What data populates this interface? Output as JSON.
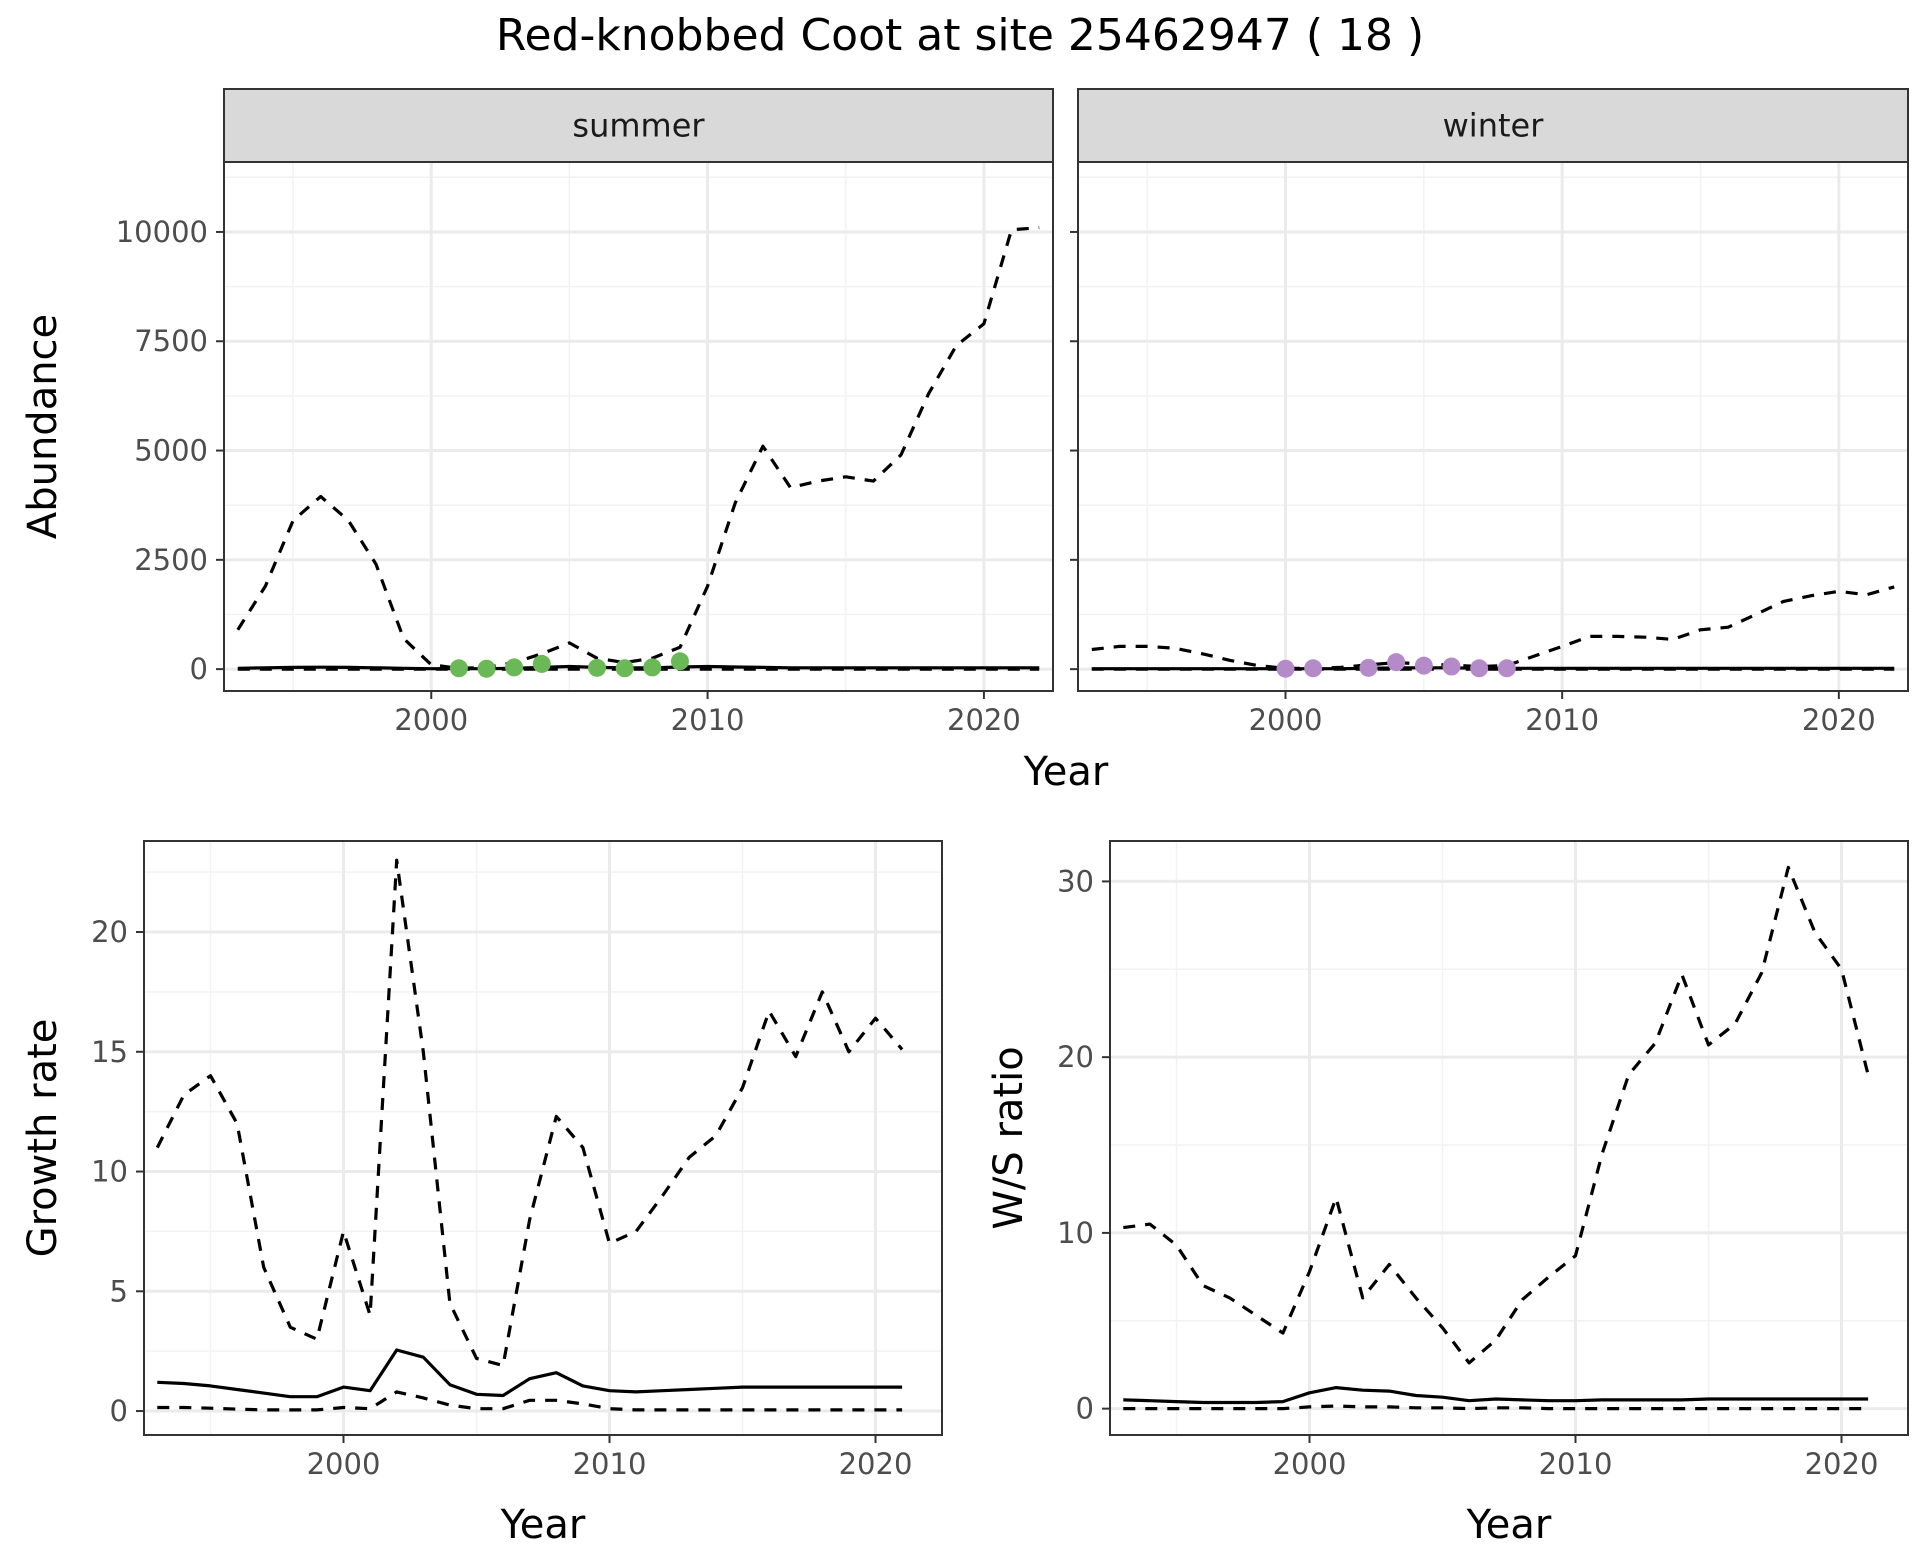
{
  "title": "Red-knobbed Coot at site 25462947 ( 18 )",
  "chart_data": [
    {
      "type": "line",
      "panel": "abundance",
      "facets": [
        "summer",
        "winter"
      ],
      "xlabel": "Year",
      "ylabel": "Abundance",
      "xlim": [
        1992.5,
        2022.5
      ],
      "ylim": [
        -500,
        11600
      ],
      "xticks": [
        2000,
        2010,
        2020
      ],
      "yticks": [
        0,
        2500,
        5000,
        7500,
        10000
      ],
      "grid": true,
      "facet_data": {
        "summer": {
          "solid": {
            "x": [
              1993,
              1994,
              1995,
              1996,
              1997,
              1998,
              1999,
              2000,
              2001,
              2002,
              2003,
              2004,
              2005,
              2006,
              2007,
              2008,
              2009,
              2010,
              2011,
              2012,
              2013,
              2014,
              2015,
              2016,
              2017,
              2018,
              2019,
              2020,
              2021,
              2022
            ],
            "y": [
              20,
              30,
              40,
              45,
              40,
              30,
              20,
              10,
              10,
              10,
              20,
              40,
              60,
              40,
              30,
              30,
              50,
              60,
              50,
              40,
              30,
              30,
              30,
              30,
              30,
              30,
              30,
              30,
              30,
              30
            ]
          },
          "dashed_upper": {
            "x": [
              1993,
              1994,
              1995,
              1996,
              1997,
              1998,
              1999,
              2000,
              2001,
              2002,
              2003,
              2004,
              2005,
              2006,
              2007,
              2008,
              2009,
              2010,
              2011,
              2012,
              2013,
              2014,
              2015,
              2016,
              2017,
              2018,
              2019,
              2020,
              2021,
              2022
            ],
            "y": [
              900,
              1900,
              3400,
              3950,
              3400,
              2400,
              700,
              100,
              20,
              40,
              150,
              350,
              600,
              250,
              150,
              250,
              500,
              1900,
              3800,
              5100,
              4150,
              4300,
              4400,
              4300,
              4900,
              6300,
              7400,
              7900,
              10050,
              10100
            ]
          },
          "dashed_lower": {
            "x": [
              1993,
              1994,
              1995,
              1996,
              1997,
              1998,
              1999,
              2000,
              2001,
              2002,
              2003,
              2004,
              2005,
              2006,
              2007,
              2008,
              2009,
              2010,
              2011,
              2012,
              2013,
              2014,
              2015,
              2016,
              2017,
              2018,
              2019,
              2020,
              2021,
              2022
            ],
            "y": [
              0,
              0,
              0,
              0,
              0,
              0,
              0,
              0,
              0,
              0,
              0,
              0,
              0,
              0,
              0,
              0,
              0,
              0,
              0,
              0,
              0,
              0,
              0,
              0,
              0,
              0,
              0,
              0,
              0,
              0
            ]
          },
          "points": {
            "x": [
              2001,
              2002,
              2003,
              2004,
              2006,
              2007,
              2008,
              2009
            ],
            "y": [
              20,
              10,
              40,
              120,
              30,
              20,
              40,
              180
            ],
            "color": "#6ab956"
          }
        },
        "winter": {
          "solid": {
            "x": [
              1993,
              1994,
              1995,
              1996,
              1997,
              1998,
              1999,
              2000,
              2001,
              2002,
              2003,
              2004,
              2005,
              2006,
              2007,
              2008,
              2009,
              2010,
              2011,
              2012,
              2013,
              2014,
              2015,
              2016,
              2017,
              2018,
              2019,
              2020,
              2021,
              2022
            ],
            "y": [
              10,
              10,
              10,
              10,
              10,
              10,
              10,
              10,
              10,
              10,
              20,
              30,
              30,
              30,
              20,
              20,
              20,
              20,
              20,
              20,
              20,
              20,
              20,
              20,
              20,
              20,
              20,
              20,
              20,
              20
            ]
          },
          "dashed_upper": {
            "x": [
              1993,
              1994,
              1995,
              1996,
              1997,
              1998,
              1999,
              2000,
              2001,
              2002,
              2003,
              2004,
              2005,
              2006,
              2007,
              2008,
              2009,
              2010,
              2011,
              2012,
              2013,
              2014,
              2015,
              2016,
              2017,
              2018,
              2019,
              2020,
              2021,
              2022
            ],
            "y": [
              450,
              520,
              520,
              480,
              350,
              200,
              80,
              20,
              20,
              40,
              100,
              150,
              120,
              90,
              60,
              80,
              300,
              520,
              750,
              750,
              730,
              680,
              900,
              960,
              1250,
              1550,
              1680,
              1780,
              1700,
              1880
            ]
          },
          "dashed_lower": {
            "x": [
              1993,
              1994,
              1995,
              1996,
              1997,
              1998,
              1999,
              2000,
              2001,
              2002,
              2003,
              2004,
              2005,
              2006,
              2007,
              2008,
              2009,
              2010,
              2011,
              2012,
              2013,
              2014,
              2015,
              2016,
              2017,
              2018,
              2019,
              2020,
              2021,
              2022
            ],
            "y": [
              0,
              0,
              0,
              0,
              0,
              0,
              0,
              0,
              0,
              0,
              0,
              0,
              0,
              0,
              0,
              0,
              0,
              0,
              0,
              0,
              0,
              0,
              0,
              0,
              0,
              0,
              0,
              0,
              0,
              0
            ]
          },
          "points": {
            "x": [
              2000,
              2001,
              2003,
              2004,
              2005,
              2006,
              2007,
              2008
            ],
            "y": [
              10,
              20,
              30,
              160,
              80,
              60,
              20,
              20
            ],
            "color": "#b48ac8"
          }
        }
      }
    },
    {
      "type": "line",
      "panel": "growth",
      "xlabel": "Year",
      "ylabel": "Growth rate",
      "xlim": [
        1992.5,
        2022.5
      ],
      "ylim": [
        -1,
        23.8
      ],
      "xticks": [
        2000,
        2010,
        2020
      ],
      "yticks": [
        0,
        5,
        10,
        15,
        20
      ],
      "grid": true,
      "solid": {
        "x": [
          1993,
          1994,
          1995,
          1996,
          1997,
          1998,
          1999,
          2000,
          2001,
          2002,
          2003,
          2004,
          2005,
          2006,
          2007,
          2008,
          2009,
          2010,
          2011,
          2012,
          2013,
          2014,
          2015,
          2016,
          2017,
          2018,
          2019,
          2020,
          2021
        ],
        "y": [
          1.2,
          1.15,
          1.05,
          0.9,
          0.75,
          0.6,
          0.6,
          1.0,
          0.85,
          2.55,
          2.25,
          1.1,
          0.7,
          0.65,
          1.35,
          1.6,
          1.05,
          0.85,
          0.8,
          0.85,
          0.9,
          0.95,
          1.0,
          1.0,
          1.0,
          1.0,
          1.0,
          1.0,
          1.0
        ]
      },
      "dashed_upper": {
        "x": [
          1993,
          1994,
          1995,
          1996,
          1997,
          1998,
          1999,
          2000,
          2001,
          2002,
          2003,
          2004,
          2005,
          2006,
          2007,
          2008,
          2009,
          2010,
          2011,
          2012,
          2013,
          2014,
          2015,
          2016,
          2017,
          2018,
          2019,
          2020,
          2021
        ],
        "y": [
          11.0,
          13.2,
          14.0,
          12.0,
          6.0,
          3.5,
          3.0,
          7.5,
          4.0,
          23.0,
          15.0,
          4.5,
          2.2,
          1.9,
          8.0,
          12.3,
          11.0,
          7.0,
          7.5,
          9.0,
          10.6,
          11.5,
          13.5,
          16.7,
          14.8,
          17.5,
          15.0,
          16.4,
          15.1
        ]
      },
      "dashed_lower": {
        "x": [
          1993,
          1994,
          1995,
          1996,
          1997,
          1998,
          1999,
          2000,
          2001,
          2002,
          2003,
          2004,
          2005,
          2006,
          2007,
          2008,
          2009,
          2010,
          2011,
          2012,
          2013,
          2014,
          2015,
          2016,
          2017,
          2018,
          2019,
          2020,
          2021
        ],
        "y": [
          0.15,
          0.15,
          0.12,
          0.08,
          0.05,
          0.05,
          0.05,
          0.15,
          0.1,
          0.8,
          0.55,
          0.25,
          0.1,
          0.1,
          0.45,
          0.45,
          0.3,
          0.1,
          0.05,
          0.05,
          0.05,
          0.05,
          0.05,
          0.05,
          0.05,
          0.05,
          0.05,
          0.05,
          0.05
        ]
      }
    },
    {
      "type": "line",
      "panel": "ratio",
      "xlabel": "Year",
      "ylabel": "W/S ratio",
      "xlim": [
        1992.5,
        2022.5
      ],
      "ylim": [
        -1.5,
        32.3
      ],
      "xticks": [
        2000,
        2010,
        2020
      ],
      "yticks": [
        0,
        10,
        20,
        30
      ],
      "grid": true,
      "solid": {
        "x": [
          1993,
          1994,
          1995,
          1996,
          1997,
          1998,
          1999,
          2000,
          2001,
          2002,
          2003,
          2004,
          2005,
          2006,
          2007,
          2008,
          2009,
          2010,
          2011,
          2012,
          2013,
          2014,
          2015,
          2016,
          2017,
          2018,
          2019,
          2020,
          2021
        ],
        "y": [
          0.5,
          0.45,
          0.4,
          0.35,
          0.35,
          0.35,
          0.4,
          0.9,
          1.2,
          1.05,
          1.0,
          0.75,
          0.65,
          0.45,
          0.55,
          0.5,
          0.45,
          0.45,
          0.5,
          0.5,
          0.5,
          0.5,
          0.55,
          0.55,
          0.55,
          0.55,
          0.55,
          0.55,
          0.55
        ]
      },
      "dashed_upper": {
        "x": [
          1993,
          1994,
          1995,
          1996,
          1997,
          1998,
          1999,
          2000,
          2001,
          2002,
          2003,
          2004,
          2005,
          2006,
          2007,
          2008,
          2009,
          2010,
          2011,
          2012,
          2013,
          2014,
          2015,
          2016,
          2017,
          2018,
          2019,
          2020,
          2021
        ],
        "y": [
          10.3,
          10.5,
          9.3,
          7.0,
          6.3,
          5.3,
          4.3,
          7.8,
          12.0,
          6.3,
          8.2,
          6.3,
          4.6,
          2.6,
          3.9,
          6.2,
          7.5,
          8.7,
          14.5,
          19.0,
          20.8,
          24.7,
          20.7,
          21.9,
          24.8,
          30.8,
          27.1,
          25.0,
          19.0
        ]
      },
      "dashed_lower": {
        "x": [
          1993,
          1994,
          1995,
          1996,
          1997,
          1998,
          1999,
          2000,
          2001,
          2002,
          2003,
          2004,
          2005,
          2006,
          2007,
          2008,
          2009,
          2010,
          2011,
          2012,
          2013,
          2014,
          2015,
          2016,
          2017,
          2018,
          2019,
          2020,
          2021
        ],
        "y": [
          0.0,
          0.0,
          0.0,
          0.0,
          0.0,
          0.0,
          0.0,
          0.1,
          0.15,
          0.1,
          0.1,
          0.05,
          0.05,
          0.0,
          0.05,
          0.05,
          0.0,
          0.0,
          0.0,
          0.0,
          0.0,
          0.0,
          0.0,
          0.0,
          0.0,
          0.0,
          0.0,
          0.0,
          0.0
        ]
      }
    }
  ]
}
